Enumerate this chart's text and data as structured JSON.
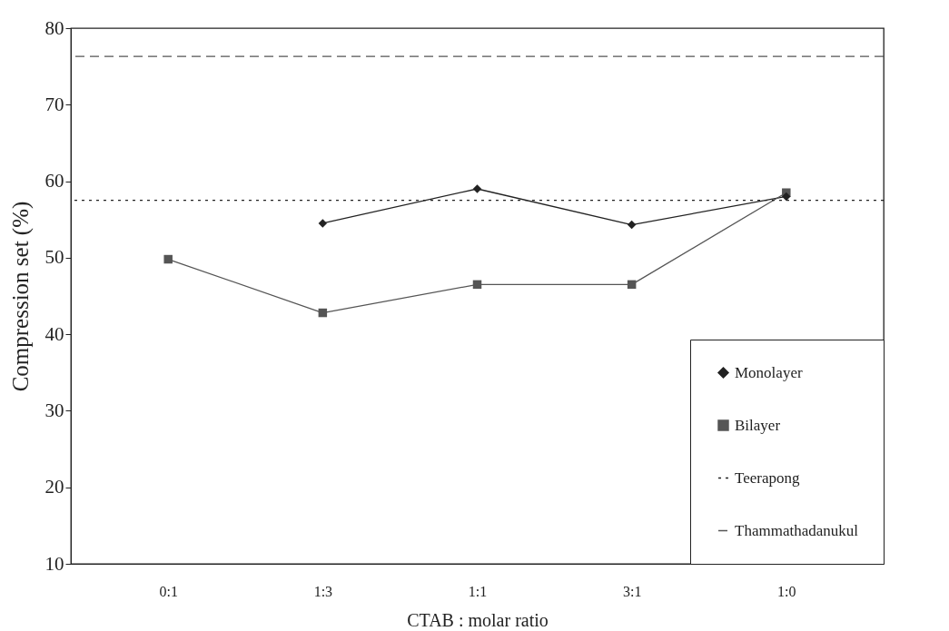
{
  "chart_data": {
    "type": "line",
    "xlabel": "CTAB : molar ratio",
    "ylabel": "Compression set (%)",
    "categories": [
      "0:1",
      "1:3",
      "1:1",
      "3:1",
      "1:0"
    ],
    "series": [
      {
        "name": "Monolayer",
        "color": "#222222",
        "marker": "diamond",
        "values": [
          null,
          54.5,
          59,
          54.3,
          58
        ]
      },
      {
        "name": "Bilayer",
        "color": "#555555",
        "marker": "square",
        "values": [
          49.8,
          42.8,
          46.5,
          46.5,
          58.5
        ]
      }
    ],
    "ref_lines": [
      {
        "axis": "y",
        "value": 57.5,
        "label": "Teerapong",
        "line_style": "dotted",
        "color": "#222222"
      },
      {
        "axis": "y",
        "value": 76.3,
        "label": "Thammathadanukul",
        "line_style": "dashed",
        "color": "#555555"
      }
    ],
    "ylim": [
      10,
      80
    ],
    "yticks": [
      10,
      20,
      30,
      40,
      50,
      60,
      70,
      80
    ],
    "grid": false,
    "legend": "bottom right",
    "line_style": "solid"
  }
}
